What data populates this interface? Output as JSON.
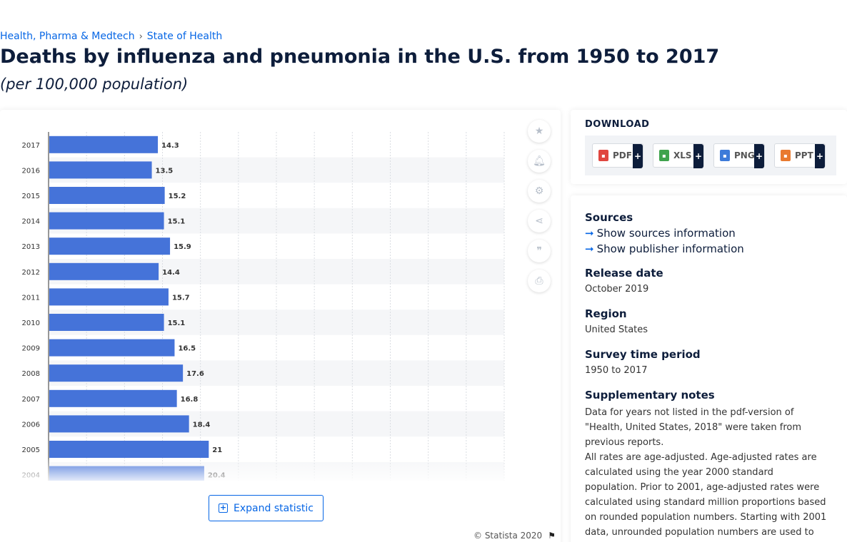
{
  "breadcrumb": {
    "items": [
      "Health, Pharma & Medtech",
      "State of Health"
    ],
    "separator": "›"
  },
  "title": "Deaths by influenza and pneumonia in the U.S. from 1950 to 2017",
  "subtitle": "(per 100,000 population)",
  "chart_data": {
    "type": "bar",
    "orientation": "horizontal",
    "categories": [
      "2017",
      "2016",
      "2015",
      "2014",
      "2013",
      "2012",
      "2011",
      "2010",
      "2009",
      "2008",
      "2007",
      "2006",
      "2005",
      "2004"
    ],
    "values": [
      14.3,
      13.5,
      15.2,
      15.1,
      15.9,
      14.4,
      15.7,
      15.1,
      16.5,
      17.6,
      16.8,
      18.4,
      21,
      20.4
    ],
    "xlim": [
      0,
      60
    ],
    "grid": true,
    "bar_color": "#4573d9"
  },
  "expand_label": "Expand statistic",
  "copyright": "© Statista 2020",
  "side_tools": [
    "star-icon",
    "bell-icon",
    "gear-icon",
    "share-icon",
    "quote-icon",
    "print-icon"
  ],
  "download": {
    "title": "DOWNLOAD",
    "formats": [
      {
        "label": "PDF",
        "color": "#e0463f"
      },
      {
        "label": "XLS",
        "color": "#3fa34d"
      },
      {
        "label": "PNG",
        "color": "#3d7bd9"
      },
      {
        "label": "PPT",
        "color": "#e97a2f"
      }
    ]
  },
  "info": {
    "sources_label": "Sources",
    "show_sources": "Show sources information",
    "show_publisher": "Show publisher information",
    "release_label": "Release date",
    "release_value": "October 2019",
    "region_label": "Region",
    "region_value": "United States",
    "survey_label": "Survey time period",
    "survey_value": "1950 to 2017",
    "notes_label": "Supplementary notes",
    "notes_1": "Data for years not listed in the pdf-version of \"Health, United States, 2018\" were taken from previous reports.",
    "notes_2": "All rates are age-adjusted. Age-adjusted rates are calculated using the year 2000 standard population. Prior to 2001, age-adjusted rates were calculated using standard million proportions based on rounded population numbers. Starting with 2001 data, unrounded population numbers are used to calculate age-adjusted rates."
  }
}
